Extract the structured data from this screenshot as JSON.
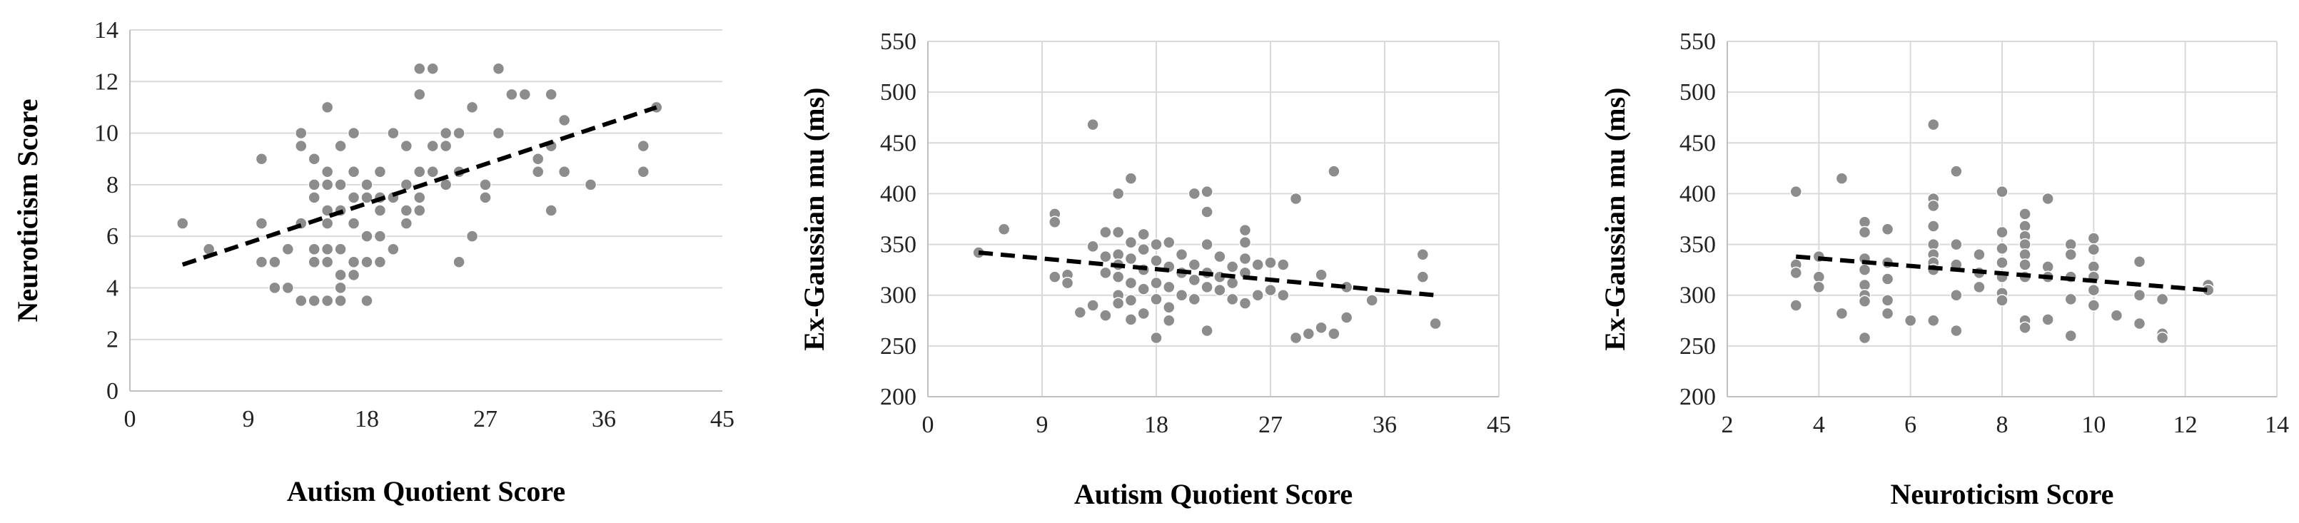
{
  "chart_data": [
    {
      "type": "scatter",
      "xlabel": "Autism Quotient Score",
      "ylabel": "Neuroticism Score",
      "xlim": [
        0,
        45
      ],
      "ylim": [
        0,
        14
      ],
      "xticks": [
        "0",
        "9",
        "18",
        "27",
        "36",
        "45"
      ],
      "yticks": [
        "0",
        "2",
        "4",
        "6",
        "8",
        "10",
        "12",
        "14"
      ],
      "grid": "horizontal",
      "marker_color": "#8c8c8c",
      "trendline": {
        "style": "dashed",
        "x": [
          4,
          40
        ],
        "y": [
          4.9,
          11.0
        ]
      },
      "points": [
        [
          4,
          6.5
        ],
        [
          6,
          5.5
        ],
        [
          10,
          9
        ],
        [
          10,
          6.5
        ],
        [
          10,
          5
        ],
        [
          11,
          5
        ],
        [
          11,
          4
        ],
        [
          12,
          5.5
        ],
        [
          12,
          4
        ],
        [
          13,
          10
        ],
        [
          13,
          9.5
        ],
        [
          13,
          6.5
        ],
        [
          13,
          3.5
        ],
        [
          14,
          9
        ],
        [
          14,
          8
        ],
        [
          14,
          7.5
        ],
        [
          14,
          5.5
        ],
        [
          14,
          5
        ],
        [
          14,
          3.5
        ],
        [
          15,
          11
        ],
        [
          15,
          8.5
        ],
        [
          15,
          8
        ],
        [
          15,
          7
        ],
        [
          15,
          6.5
        ],
        [
          15,
          5.5
        ],
        [
          15,
          5
        ],
        [
          15,
          3.5
        ],
        [
          16,
          9.5
        ],
        [
          16,
          8
        ],
        [
          16,
          7
        ],
        [
          16,
          5.5
        ],
        [
          16,
          4.5
        ],
        [
          16,
          4
        ],
        [
          16,
          3.5
        ],
        [
          17,
          10
        ],
        [
          17,
          8.5
        ],
        [
          17,
          7.5
        ],
        [
          17,
          6.5
        ],
        [
          17,
          5
        ],
        [
          17,
          4.5
        ],
        [
          18,
          8
        ],
        [
          18,
          7.5
        ],
        [
          18,
          6
        ],
        [
          18,
          5
        ],
        [
          18,
          3.5
        ],
        [
          19,
          8.5
        ],
        [
          19,
          7.5
        ],
        [
          19,
          7
        ],
        [
          19,
          6
        ],
        [
          19,
          5
        ],
        [
          20,
          10
        ],
        [
          20,
          7.5
        ],
        [
          20,
          5.5
        ],
        [
          21,
          9.5
        ],
        [
          21,
          8
        ],
        [
          21,
          7
        ],
        [
          21,
          6.5
        ],
        [
          22,
          12.5
        ],
        [
          22,
          11.5
        ],
        [
          22,
          8.5
        ],
        [
          22,
          7.5
        ],
        [
          22,
          7
        ],
        [
          23,
          12.5
        ],
        [
          23,
          9.5
        ],
        [
          23,
          8.5
        ],
        [
          24,
          10
        ],
        [
          24,
          9.5
        ],
        [
          24,
          8
        ],
        [
          25,
          10
        ],
        [
          25,
          8.5
        ],
        [
          25,
          5
        ],
        [
          26,
          11
        ],
        [
          26,
          6
        ],
        [
          27,
          8
        ],
        [
          27,
          7.5
        ],
        [
          28,
          12.5
        ],
        [
          28,
          10
        ],
        [
          29,
          11.5
        ],
        [
          30,
          11.5
        ],
        [
          31,
          9
        ],
        [
          31,
          8.5
        ],
        [
          32,
          11.5
        ],
        [
          32,
          9.5
        ],
        [
          32,
          7
        ],
        [
          33,
          10.5
        ],
        [
          33,
          8.5
        ],
        [
          35,
          8
        ],
        [
          39,
          9.5
        ],
        [
          39,
          8.5
        ],
        [
          40,
          11
        ]
      ]
    },
    {
      "type": "scatter",
      "xlabel": "Autism Quotient Score",
      "ylabel": "Ex-Gaussian mu (ms)",
      "xlim": [
        0,
        45
      ],
      "ylim": [
        200,
        550
      ],
      "xticks": [
        "0",
        "9",
        "18",
        "27",
        "36",
        "45"
      ],
      "yticks": [
        "200",
        "250",
        "300",
        "350",
        "400",
        "450",
        "500",
        "550"
      ],
      "grid": "both",
      "marker_color": "#8c8c8c",
      "trendline": {
        "style": "dashed",
        "x": [
          4,
          40
        ],
        "y": [
          342,
          300
        ]
      },
      "points": [
        [
          4,
          342
        ],
        [
          6,
          365
        ],
        [
          10,
          380
        ],
        [
          10,
          372
        ],
        [
          10,
          318
        ],
        [
          11,
          320
        ],
        [
          11,
          312
        ],
        [
          12,
          283
        ],
        [
          13,
          468
        ],
        [
          13,
          348
        ],
        [
          13,
          290
        ],
        [
          14,
          362
        ],
        [
          14,
          338
        ],
        [
          14,
          322
        ],
        [
          14,
          280
        ],
        [
          15,
          400
        ],
        [
          15,
          362
        ],
        [
          15,
          340
        ],
        [
          15,
          330
        ],
        [
          15,
          318
        ],
        [
          15,
          300
        ],
        [
          15,
          292
        ],
        [
          16,
          415
        ],
        [
          16,
          352
        ],
        [
          16,
          336
        ],
        [
          16,
          312
        ],
        [
          16,
          295
        ],
        [
          16,
          276
        ],
        [
          17,
          360
        ],
        [
          17,
          345
        ],
        [
          17,
          325
        ],
        [
          17,
          306
        ],
        [
          17,
          282
        ],
        [
          18,
          350
        ],
        [
          18,
          334
        ],
        [
          18,
          312
        ],
        [
          18,
          296
        ],
        [
          18,
          258
        ],
        [
          19,
          352
        ],
        [
          19,
          328
        ],
        [
          19,
          308
        ],
        [
          19,
          288
        ],
        [
          19,
          275
        ],
        [
          20,
          340
        ],
        [
          20,
          322
        ],
        [
          20,
          300
        ],
        [
          21,
          400
        ],
        [
          21,
          330
        ],
        [
          21,
          315
        ],
        [
          21,
          296
        ],
        [
          22,
          402
        ],
        [
          22,
          382
        ],
        [
          22,
          350
        ],
        [
          22,
          322
        ],
        [
          22,
          308
        ],
        [
          22,
          265
        ],
        [
          23,
          338
        ],
        [
          23,
          318
        ],
        [
          23,
          305
        ],
        [
          24,
          328
        ],
        [
          24,
          312
        ],
        [
          24,
          296
        ],
        [
          25,
          364
        ],
        [
          25,
          352
        ],
        [
          25,
          336
        ],
        [
          25,
          322
        ],
        [
          25,
          292
        ],
        [
          26,
          330
        ],
        [
          26,
          300
        ],
        [
          27,
          332
        ],
        [
          27,
          305
        ],
        [
          28,
          330
        ],
        [
          28,
          300
        ],
        [
          29,
          395
        ],
        [
          29,
          258
        ],
        [
          30,
          262
        ],
        [
          31,
          320
        ],
        [
          31,
          268
        ],
        [
          32,
          422
        ],
        [
          32,
          262
        ],
        [
          33,
          308
        ],
        [
          33,
          278
        ],
        [
          35,
          295
        ],
        [
          39,
          340
        ],
        [
          39,
          318
        ],
        [
          40,
          272
        ]
      ]
    },
    {
      "type": "scatter",
      "xlabel": "Neuroticism Score",
      "ylabel": "Ex-Gaussian mu (ms)",
      "xlim": [
        2,
        14
      ],
      "ylim": [
        200,
        550
      ],
      "xticks": [
        "2",
        "4",
        "6",
        "8",
        "10",
        "12",
        "14"
      ],
      "yticks": [
        "200",
        "250",
        "300",
        "350",
        "400",
        "450",
        "500",
        "550"
      ],
      "grid": "both",
      "marker_color": "#8c8c8c",
      "trendline": {
        "style": "dashed",
        "x": [
          3.5,
          12.5
        ],
        "y": [
          338,
          305
        ]
      },
      "points": [
        [
          3.5,
          402
        ],
        [
          3.5,
          330
        ],
        [
          3.5,
          322
        ],
        [
          3.5,
          290
        ],
        [
          4,
          338
        ],
        [
          4,
          318
        ],
        [
          4,
          308
        ],
        [
          4.5,
          415
        ],
        [
          4.5,
          282
        ],
        [
          5,
          372
        ],
        [
          5,
          362
        ],
        [
          5,
          336
        ],
        [
          5,
          325
        ],
        [
          5,
          310
        ],
        [
          5,
          300
        ],
        [
          5,
          294
        ],
        [
          5,
          258
        ],
        [
          5.5,
          365
        ],
        [
          5.5,
          332
        ],
        [
          5.5,
          316
        ],
        [
          5.5,
          295
        ],
        [
          5.5,
          282
        ],
        [
          6,
          275
        ],
        [
          6.5,
          468
        ],
        [
          6.5,
          395
        ],
        [
          6.5,
          388
        ],
        [
          6.5,
          368
        ],
        [
          6.5,
          350
        ],
        [
          6.5,
          340
        ],
        [
          6.5,
          332
        ],
        [
          6.5,
          325
        ],
        [
          6.5,
          275
        ],
        [
          7,
          422
        ],
        [
          7,
          350
        ],
        [
          7,
          330
        ],
        [
          7,
          300
        ],
        [
          7,
          265
        ],
        [
          7.5,
          340
        ],
        [
          7.5,
          322
        ],
        [
          7.5,
          308
        ],
        [
          8,
          402
        ],
        [
          8,
          362
        ],
        [
          8,
          346
        ],
        [
          8,
          332
        ],
        [
          8,
          318
        ],
        [
          8,
          302
        ],
        [
          8,
          295
        ],
        [
          8.5,
          380
        ],
        [
          8.5,
          368
        ],
        [
          8.5,
          358
        ],
        [
          8.5,
          350
        ],
        [
          8.5,
          340
        ],
        [
          8.5,
          330
        ],
        [
          8.5,
          318
        ],
        [
          8.5,
          275
        ],
        [
          8.5,
          268
        ],
        [
          9,
          395
        ],
        [
          9,
          328
        ],
        [
          9,
          318
        ],
        [
          9,
          276
        ],
        [
          9.5,
          350
        ],
        [
          9.5,
          340
        ],
        [
          9.5,
          318
        ],
        [
          9.5,
          296
        ],
        [
          9.5,
          260
        ],
        [
          10,
          356
        ],
        [
          10,
          345
        ],
        [
          10,
          328
        ],
        [
          10,
          318
        ],
        [
          10,
          305
        ],
        [
          10,
          290
        ],
        [
          10.5,
          280
        ],
        [
          11,
          333
        ],
        [
          11,
          300
        ],
        [
          11,
          272
        ],
        [
          11.5,
          296
        ],
        [
          11.5,
          262
        ],
        [
          11.5,
          258
        ],
        [
          12.5,
          310
        ],
        [
          12.5,
          305
        ]
      ]
    }
  ]
}
